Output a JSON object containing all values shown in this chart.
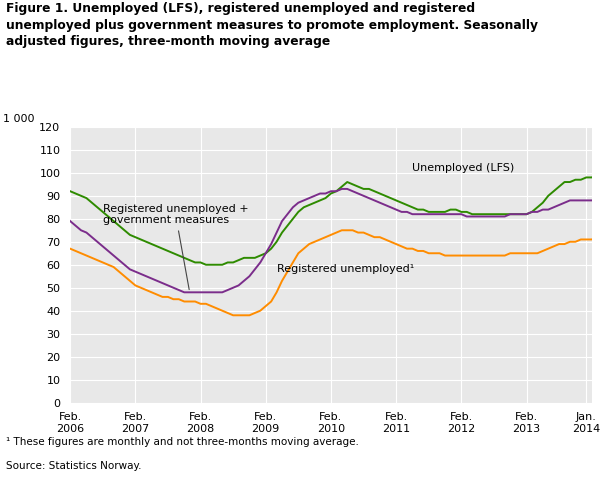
{
  "title": "Figure 1. Unemployed (LFS), registered unemployed and registered\nunemployed plus government measures to promote employment. Seasonally\nadjusted figures, three-month moving average",
  "footnote1": "¹ These figures are monthly and not three-months moving average.",
  "footnote2": "Source: Statistics Norway.",
  "ylabel_top": "1 000",
  "ylim": [
    0,
    120
  ],
  "yticks": [
    0,
    10,
    20,
    30,
    40,
    50,
    60,
    70,
    80,
    90,
    100,
    110,
    120
  ],
  "colors": {
    "lfs": "#2e8b00",
    "reg_unemp": "#ff8c00",
    "reg_plus_gov": "#7b2d8b"
  },
  "label_lfs": "Unemployed (LFS)",
  "label_reg": "Registered unemployed¹",
  "label_gov": "Registered unemployed +\ngovernment measures",
  "bg_color": "#e8e8e8",
  "xtick_labels": [
    "Feb.\n2006",
    "Feb.\n2007",
    "Feb.\n2008",
    "Feb.\n2009",
    "Feb.\n2010",
    "Feb.\n2011",
    "Feb.\n2012",
    "Feb.\n2013",
    "Jan.\n2014"
  ],
  "lfs": [
    92,
    91,
    90,
    89,
    87,
    85,
    83,
    81,
    79,
    77,
    75,
    73,
    72,
    71,
    70,
    69,
    68,
    67,
    66,
    65,
    64,
    63,
    62,
    61,
    61,
    60,
    60,
    60,
    60,
    61,
    61,
    62,
    63,
    63,
    63,
    64,
    65,
    67,
    70,
    74,
    77,
    80,
    83,
    85,
    86,
    87,
    88,
    89,
    91,
    92,
    94,
    96,
    95,
    94,
    93,
    93,
    92,
    91,
    90,
    89,
    88,
    87,
    86,
    85,
    84,
    84,
    83,
    83,
    83,
    83,
    84,
    84,
    83,
    83,
    82,
    82,
    82,
    82,
    82,
    82,
    82,
    82,
    82,
    82,
    82,
    83,
    85,
    87,
    90,
    92,
    94,
    96,
    96,
    97,
    97,
    98,
    98,
    99,
    100
  ],
  "reg": [
    67,
    66,
    65,
    64,
    63,
    62,
    61,
    60,
    59,
    57,
    55,
    53,
    51,
    50,
    49,
    48,
    47,
    46,
    46,
    45,
    45,
    44,
    44,
    44,
    43,
    43,
    42,
    41,
    40,
    39,
    38,
    38,
    38,
    38,
    39,
    40,
    42,
    44,
    48,
    53,
    57,
    61,
    65,
    67,
    69,
    70,
    71,
    72,
    73,
    74,
    75,
    75,
    75,
    74,
    74,
    73,
    72,
    72,
    71,
    70,
    69,
    68,
    67,
    67,
    66,
    66,
    65,
    65,
    65,
    64,
    64,
    64,
    64,
    64,
    64,
    64,
    64,
    64,
    64,
    64,
    64,
    65,
    65,
    65,
    65,
    65,
    65,
    66,
    67,
    68,
    69,
    69,
    70,
    70,
    71,
    71,
    71,
    72,
    73
  ],
  "gov": [
    79,
    77,
    75,
    74,
    72,
    70,
    68,
    66,
    64,
    62,
    60,
    58,
    57,
    56,
    55,
    54,
    53,
    52,
    51,
    50,
    49,
    48,
    48,
    48,
    48,
    48,
    48,
    48,
    48,
    49,
    50,
    51,
    53,
    55,
    58,
    61,
    65,
    69,
    74,
    79,
    82,
    85,
    87,
    88,
    89,
    90,
    91,
    91,
    92,
    92,
    93,
    93,
    92,
    91,
    90,
    89,
    88,
    87,
    86,
    85,
    84,
    83,
    83,
    82,
    82,
    82,
    82,
    82,
    82,
    82,
    82,
    82,
    82,
    81,
    81,
    81,
    81,
    81,
    81,
    81,
    81,
    82,
    82,
    82,
    82,
    83,
    83,
    84,
    84,
    85,
    86,
    87,
    88,
    88,
    88,
    88,
    88,
    88,
    88
  ]
}
